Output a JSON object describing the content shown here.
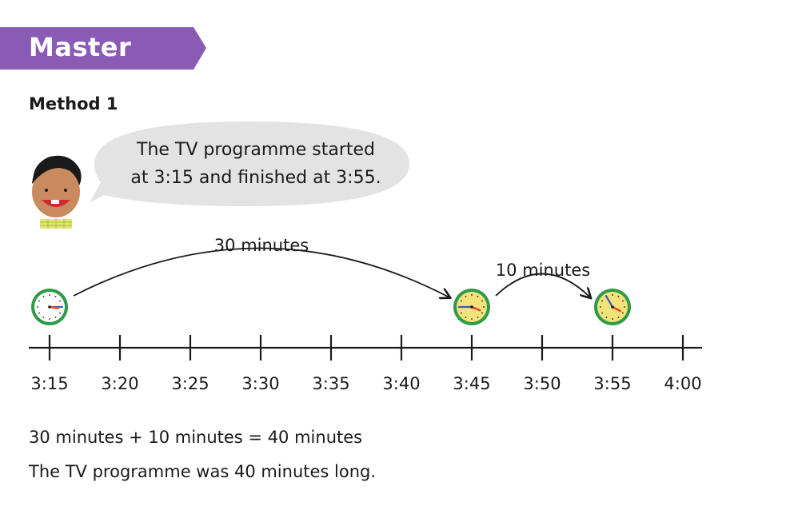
{
  "banner": {
    "title": "Master",
    "color": "#8a5bb5"
  },
  "method": {
    "label": "Method 1"
  },
  "speech": {
    "line1": "The TV programme started",
    "line2": "at 3:15 and finished at 3:55."
  },
  "number_line": {
    "ticks": [
      "3:15",
      "3:20",
      "3:25",
      "3:30",
      "3:35",
      "3:40",
      "3:45",
      "3:50",
      "3:55",
      "4:00"
    ],
    "jumps": [
      {
        "label": "30 minutes",
        "from": "3:15",
        "to": "3:45"
      },
      {
        "label": "10 minutes",
        "from": "3:45",
        "to": "3:55"
      }
    ],
    "clocks": [
      {
        "time": "3:15",
        "face_color": "#ffffff"
      },
      {
        "time": "3:45",
        "face_color": "#f2e27a"
      },
      {
        "time": "3:55",
        "face_color": "#f2e27a"
      }
    ]
  },
  "result": {
    "equation": "30 minutes + 10 minutes = 40 minutes",
    "conclusion": "The TV programme was 40 minutes long."
  }
}
